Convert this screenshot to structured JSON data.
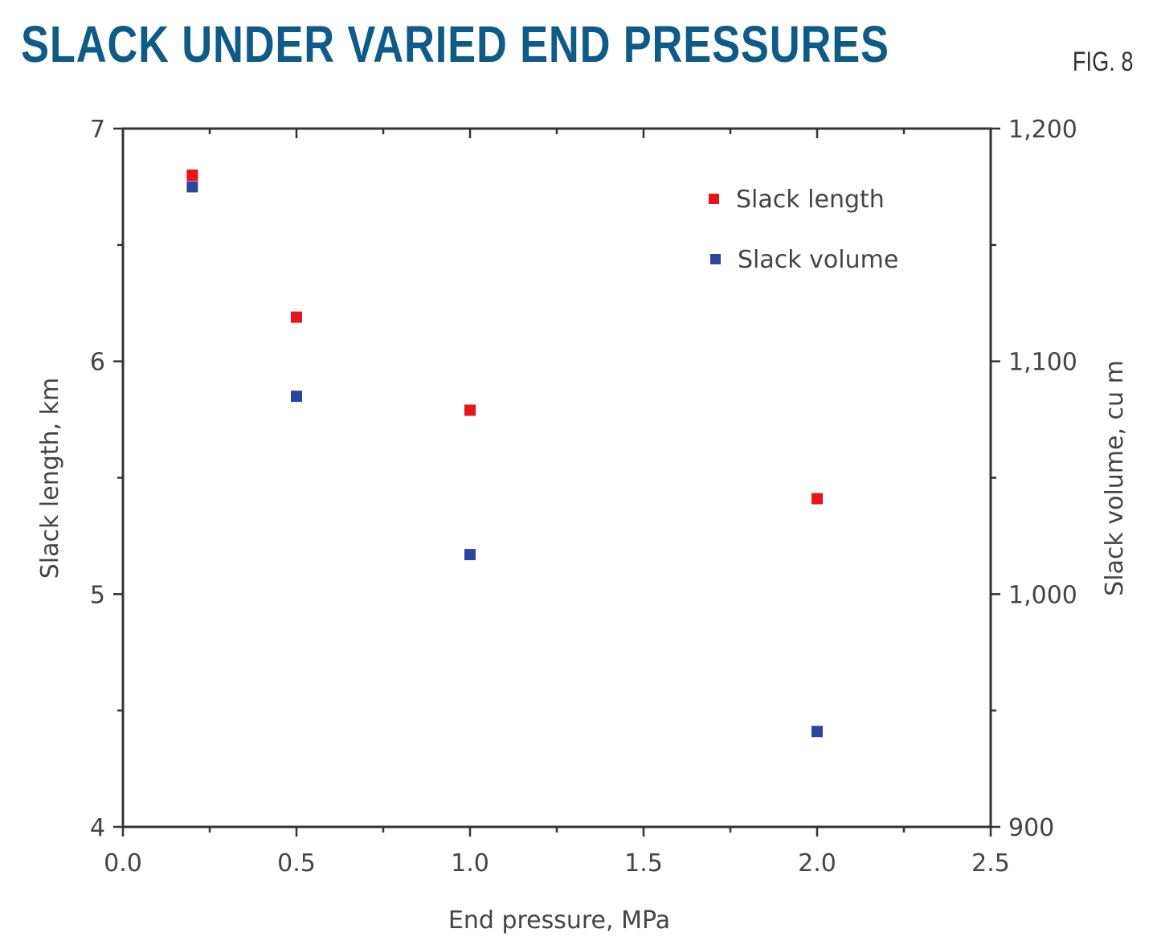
{
  "header": {
    "title": "SLACK UNDER VARIED END PRESSURES",
    "figure_label": "FIG. 8"
  },
  "chart_data": {
    "type": "scatter",
    "title": "SLACK UNDER VARIED END PRESSURES",
    "xlabel": "End pressure, MPa",
    "ylabel": "Slack length, km",
    "y2label": "Slack volume, cu m",
    "xlim": [
      0,
      2.5
    ],
    "ylim": [
      4,
      7
    ],
    "y2lim": [
      900,
      1200
    ],
    "xticks": [
      "0.0",
      "0.5",
      "1.0",
      "1.5",
      "2.0",
      "2.5"
    ],
    "yticks": [
      "4",
      "5",
      "6",
      "7"
    ],
    "y2ticks": [
      "900",
      "1,000",
      "1,100",
      "1,200"
    ],
    "grid": false,
    "legend_position": "top-right",
    "series": [
      {
        "name": "Slack length",
        "axis": "left",
        "color": "#e8141c",
        "x": [
          0.2,
          0.5,
          1.0,
          2.0
        ],
        "y": [
          6.8,
          6.19,
          5.79,
          5.41
        ]
      },
      {
        "name": "Slack volume",
        "axis": "right",
        "color": "#2a44a0",
        "x": [
          0.2,
          0.5,
          1.0,
          2.0
        ],
        "y": [
          1175,
          1085,
          1017,
          941
        ]
      }
    ]
  }
}
